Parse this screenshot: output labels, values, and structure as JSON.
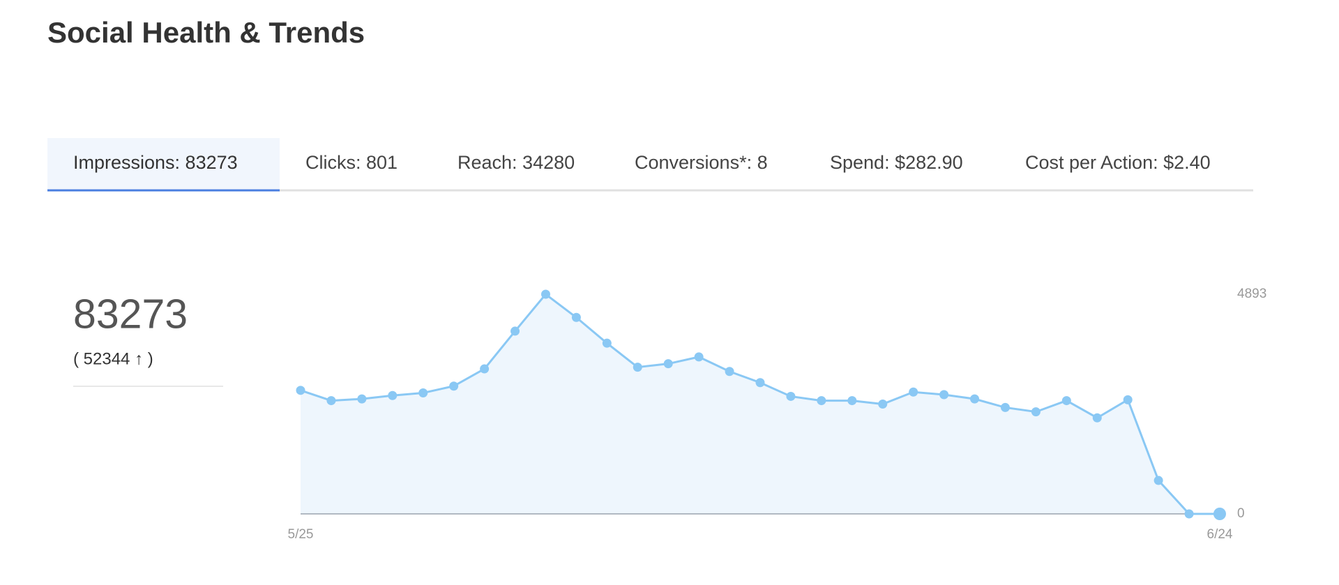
{
  "header": {
    "title": "Social Health & Trends"
  },
  "tabs": [
    "Impressions: 83273",
    "Clicks: 801",
    "Reach: 34280",
    "Conversions*: 8",
    "Spend: $282.90",
    "Cost per Action: $2.40"
  ],
  "summary": {
    "value": "83273",
    "comparison": "( 52344 ↑ )"
  },
  "chart_data": {
    "type": "area",
    "categories": [
      "5/25",
      null,
      null,
      null,
      null,
      null,
      null,
      null,
      null,
      null,
      null,
      null,
      null,
      null,
      null,
      null,
      null,
      null,
      null,
      null,
      null,
      null,
      null,
      null,
      null,
      null,
      null,
      null,
      null,
      null,
      "6/24"
    ],
    "series": [
      {
        "color": "#8ac8f4",
        "values": [
          2752,
          2523,
          2561,
          2637,
          2695,
          2847,
          3230,
          4071,
          4893,
          4376,
          3803,
          3268,
          3345,
          3497,
          3173,
          2924,
          2618,
          2523,
          2523,
          2446,
          2714,
          2656,
          2561,
          2370,
          2274,
          2523,
          2140,
          2542,
          745,
          0,
          0
        ]
      }
    ],
    "ylim": [
      0,
      4893
    ],
    "yticks": [
      0,
      4893
    ]
  }
}
